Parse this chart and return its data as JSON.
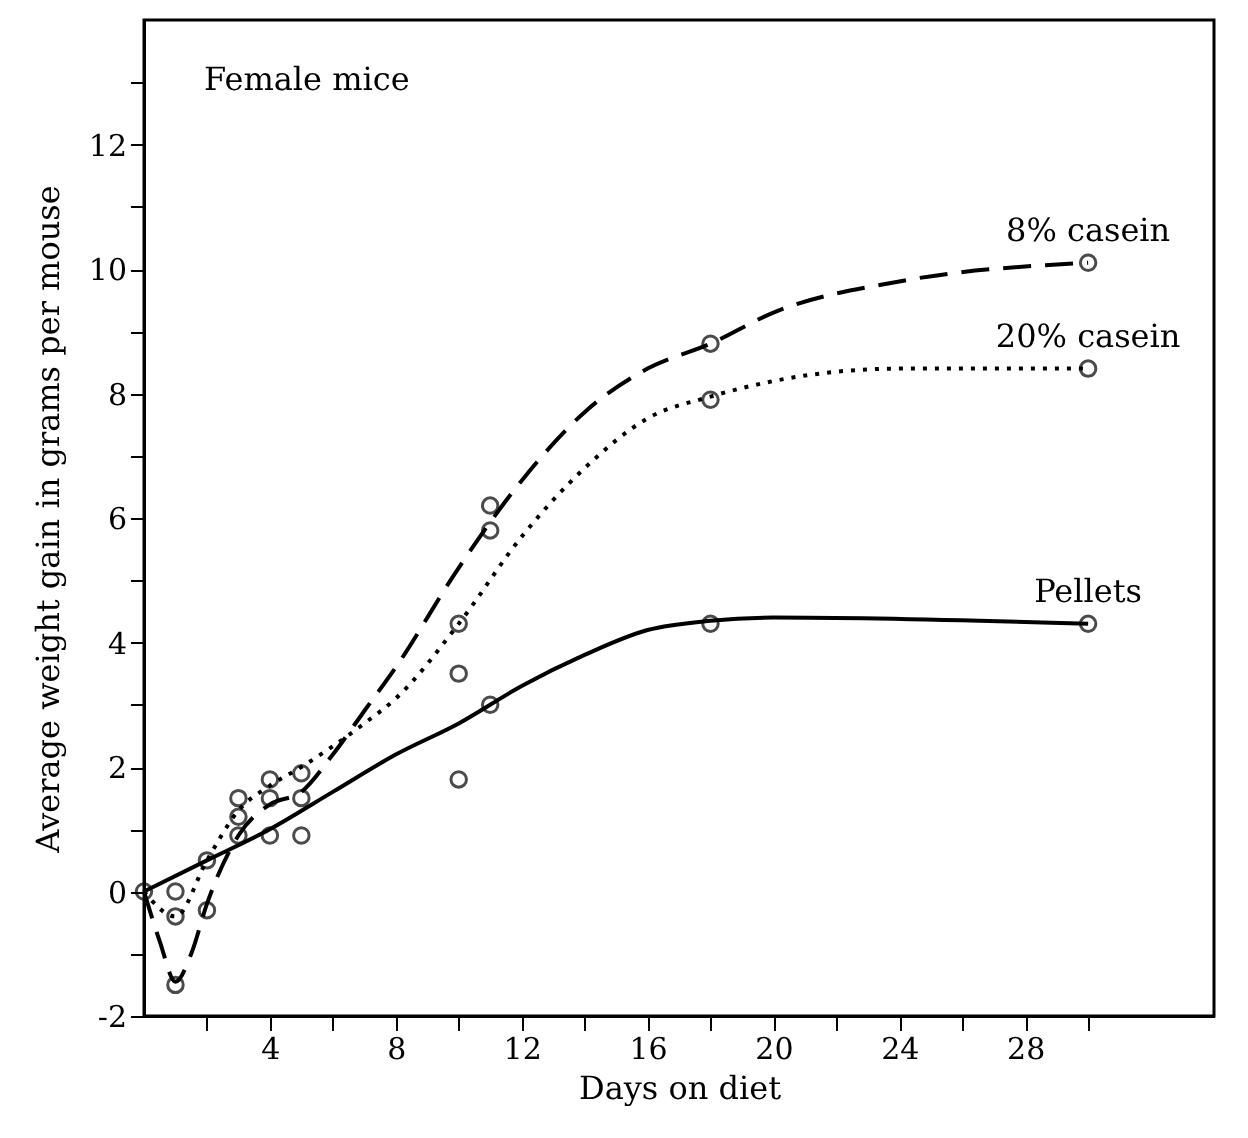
{
  "chart_data": {
    "type": "line",
    "xlabel": "Days on diet",
    "ylabel": "Average weight gain in grams per mouse",
    "annotations": [
      "Female mice"
    ],
    "xlim": [
      0,
      34
    ],
    "ylim": [
      -2,
      14
    ],
    "xticks": [
      {
        "value": 2,
        "label": null
      },
      4,
      {
        "value": 6,
        "label": null
      },
      8,
      {
        "value": 10,
        "label": null
      },
      12,
      {
        "value": 14,
        "label": null
      },
      16,
      {
        "value": 18,
        "label": null
      },
      20,
      {
        "value": 22,
        "label": null
      },
      24,
      {
        "value": 26,
        "label": null
      },
      28,
      {
        "value": 30,
        "label": null
      }
    ],
    "yticks": [
      -2,
      {
        "value": -1,
        "label": null
      },
      0,
      {
        "value": 1,
        "label": null
      },
      2,
      {
        "value": 3,
        "label": null
      },
      4,
      {
        "value": 5,
        "label": null
      },
      6,
      {
        "value": 7,
        "label": null
      },
      8,
      {
        "value": 9,
        "label": null
      },
      10,
      {
        "value": 11,
        "label": null
      },
      12,
      {
        "value": 13,
        "label": null
      }
    ],
    "grid": false,
    "series": [
      {
        "name": "8% casein",
        "type": "line",
        "line_style": "dashed",
        "color": "#000000",
        "x": [
          0,
          0.5,
          1,
          1.5,
          2,
          3,
          4,
          5,
          6,
          7,
          8,
          10,
          12,
          14,
          16,
          18,
          20,
          24,
          30
        ],
        "values": [
          0,
          -0.8,
          -1.45,
          -1,
          -0.2,
          0.9,
          1.4,
          1.6,
          2.2,
          2.9,
          3.6,
          5.2,
          6.6,
          7.7,
          8.4,
          8.8,
          9.3,
          9.8,
          10.1
        ]
      },
      {
        "name": "20% casein",
        "type": "line",
        "line_style": "dotted",
        "color": "#000000",
        "x": [
          0,
          1,
          2,
          3,
          4,
          5,
          7,
          8,
          10,
          12,
          14,
          16,
          18,
          20,
          24,
          30
        ],
        "values": [
          0,
          -0.4,
          0.5,
          1.3,
          1.7,
          2,
          2.7,
          3.1,
          4.3,
          5.7,
          6.8,
          7.6,
          7.95,
          8.2,
          8.4,
          8.4
        ]
      },
      {
        "name": "Pellets",
        "type": "line",
        "line_style": "solid",
        "color": "#000000",
        "x": [
          0,
          2,
          4,
          6,
          8,
          10,
          12,
          14,
          16,
          18,
          20,
          30
        ],
        "values": [
          0,
          0.5,
          1.0,
          1.6,
          2.2,
          2.7,
          3.3,
          3.8,
          4.2,
          4.35,
          4.4,
          4.3
        ]
      },
      {
        "type": "scatter",
        "marker": "circle",
        "color": "#000000",
        "x": [
          1,
          2,
          3,
          4,
          5,
          10,
          11,
          18,
          30
        ],
        "values": [
          -1.5,
          -0.3,
          1.5,
          1.5,
          1.5,
          4.3,
          6.2,
          8.8,
          10.1
        ]
      },
      {
        "type": "scatter",
        "marker": "circle",
        "color": "#000000",
        "x": [
          1,
          2,
          3,
          4,
          5,
          10,
          11,
          18,
          30
        ],
        "values": [
          -0.4,
          0.5,
          1.2,
          1.8,
          1.9,
          3.5,
          5.8,
          7.9,
          8.4
        ]
      },
      {
        "type": "scatter",
        "marker": "circle",
        "color": "#000000",
        "x": [
          0,
          1,
          3,
          4,
          5,
          10,
          11,
          18,
          30
        ],
        "values": [
          0,
          0,
          0.9,
          0.9,
          0.9,
          1.8,
          3.0,
          4.3,
          4.3
        ]
      }
    ]
  }
}
